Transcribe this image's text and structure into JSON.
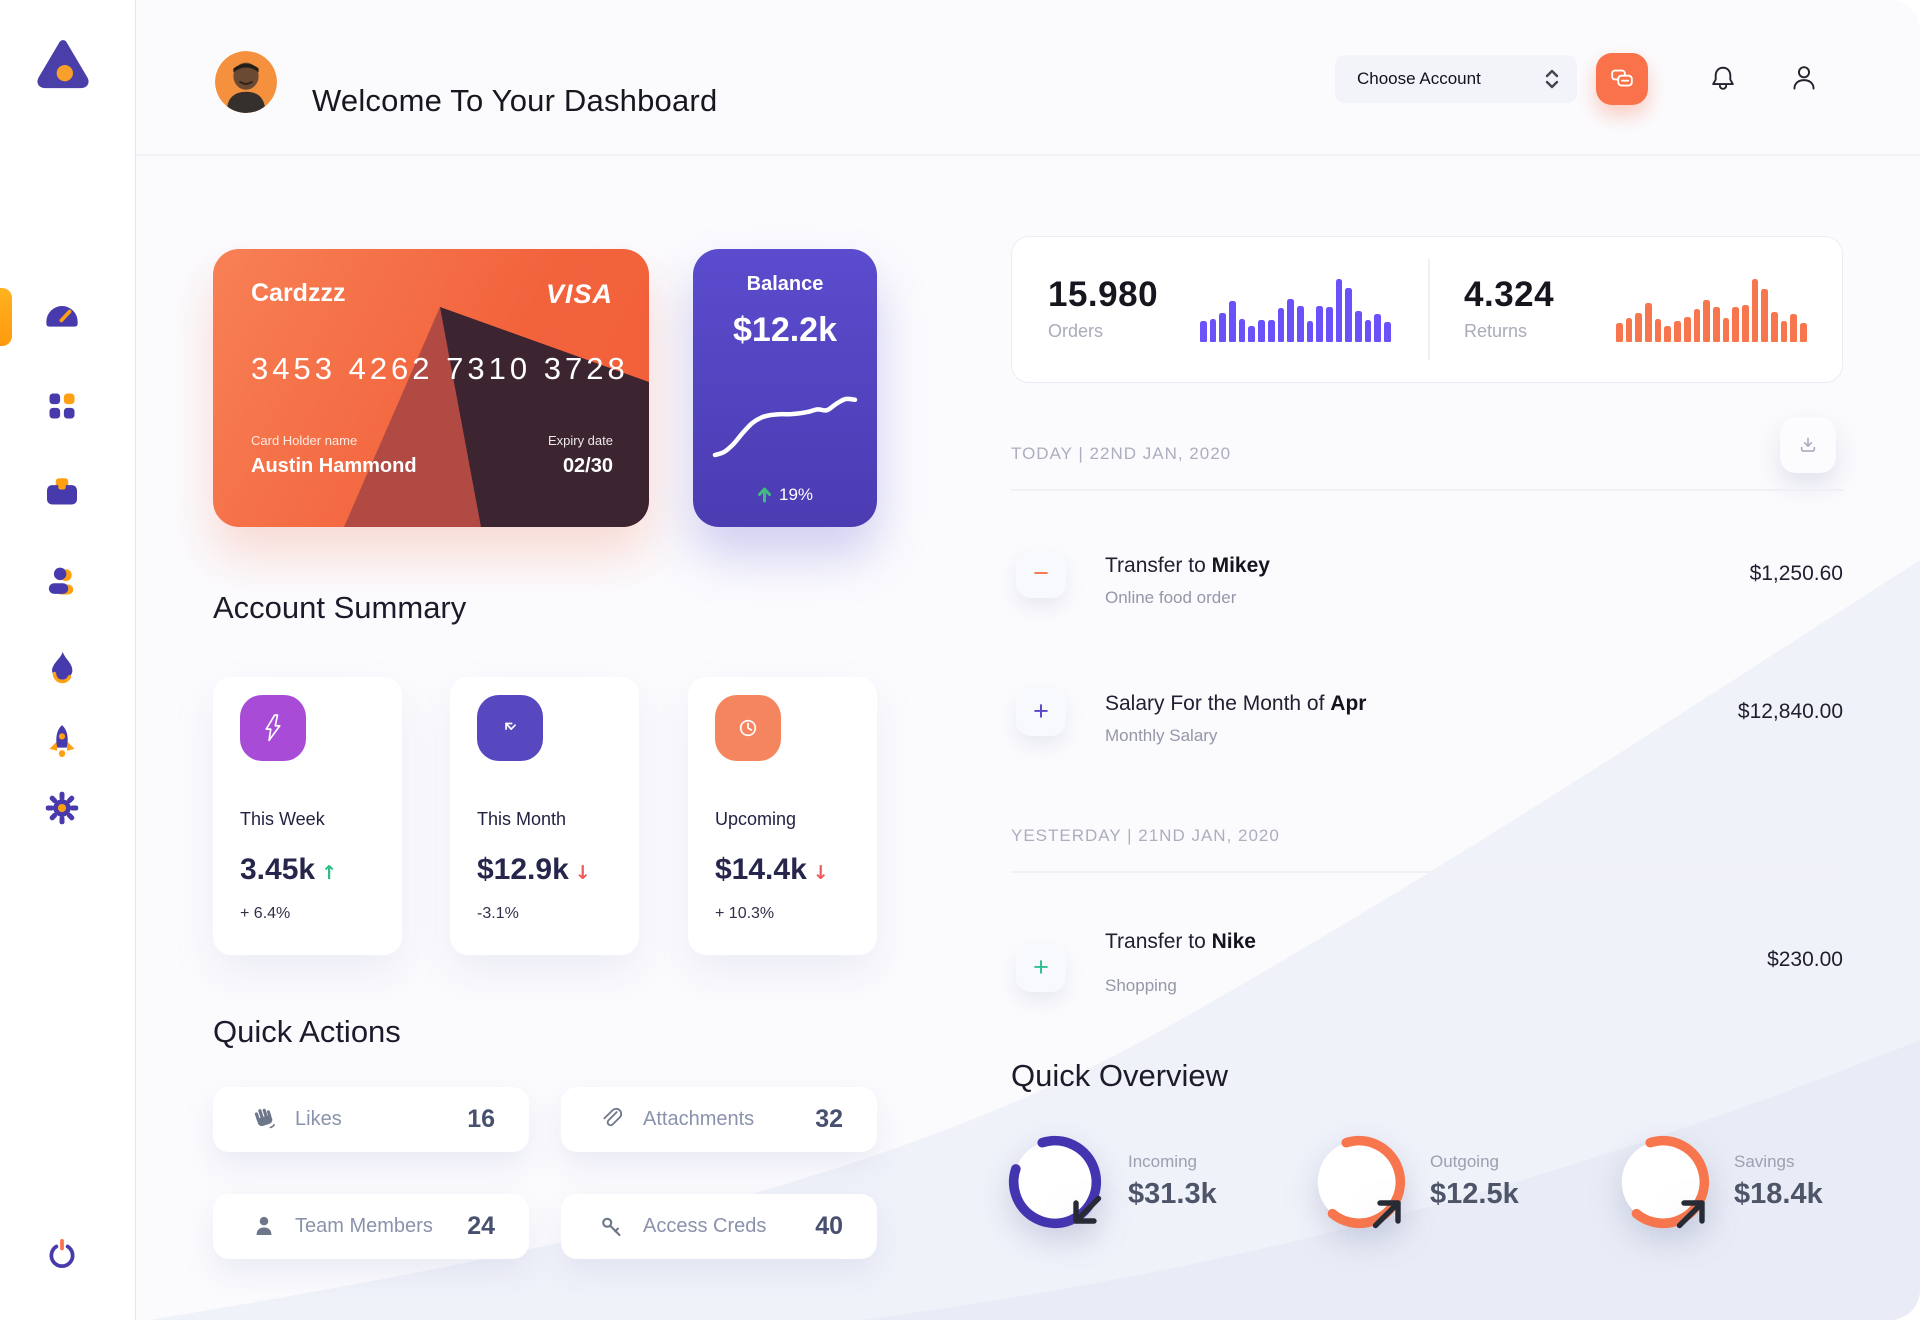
{
  "header": {
    "title": "Welcome To Your Dashboard",
    "account_select_label": "Choose Account"
  },
  "sidebar": {
    "items": [
      {
        "name": "dashboard",
        "icon": "speedometer-icon",
        "active": true
      },
      {
        "name": "apps",
        "icon": "grid-icon",
        "active": false
      },
      {
        "name": "work",
        "icon": "briefcase-icon",
        "active": false
      },
      {
        "name": "contacts",
        "icon": "user-icon",
        "active": false
      },
      {
        "name": "trending",
        "icon": "flame-icon",
        "active": false
      },
      {
        "name": "launch",
        "icon": "rocket-icon",
        "active": false
      },
      {
        "name": "settings",
        "icon": "gear-icon",
        "active": false
      }
    ],
    "logout_icon": "power-icon"
  },
  "credit_card": {
    "name": "Cardzzz",
    "brand": "VISA",
    "number": "3453 4262 7310 3728",
    "holder_label": "Card Holder name",
    "holder_name": "Austin Hammond",
    "expiry_label": "Expiry date",
    "expiry": "02/30"
  },
  "balance_card": {
    "label": "Balance",
    "value": "$12.2k",
    "change": "19%",
    "trend_color": "#3DBE7E"
  },
  "stats": [
    {
      "value": "15.980",
      "label": "Orders"
    },
    {
      "value": "4.324",
      "label": "Returns"
    }
  ],
  "account_summary": {
    "heading": "Account Summary",
    "cards": [
      {
        "label": "This Week",
        "value": "3.45k",
        "arrow": "↑",
        "arrow_color": "#2FBF84",
        "delta": "+ 6.4%",
        "icon": "lightning-icon",
        "icon_bg": "#A84BD6"
      },
      {
        "label": "This Month",
        "value": "$12.9k",
        "arrow": "↓",
        "arrow_color": "#F05A5A",
        "delta": "-3.1%",
        "icon": "arrow-up-left-icon",
        "icon_bg": "#5748C0"
      },
      {
        "label": "Upcoming",
        "value": "$14.4k",
        "arrow": "↓",
        "arrow_color": "#F05A5A",
        "delta": "+ 10.3%",
        "icon": "clock-icon",
        "icon_bg": "#F5855F"
      }
    ]
  },
  "quick_actions": {
    "heading": "Quick Actions",
    "items": [
      {
        "label": "Likes",
        "value": "16",
        "icon": "hand-icon"
      },
      {
        "label": "Attachments",
        "value": "32",
        "icon": "paperclip-icon"
      },
      {
        "label": "Team Members",
        "value": "24",
        "icon": "member-icon"
      },
      {
        "label": "Access Creds",
        "value": "40",
        "icon": "key-icon"
      }
    ]
  },
  "transactions": {
    "groups": [
      {
        "date": "TODAY | 22ND JAN, 2020",
        "rows": [
          {
            "title_prefix": "Transfer to ",
            "title_bold": "Mikey",
            "subtitle": "Online food order",
            "amount": "$1,250.60",
            "sign_glyph": "−",
            "sign_color": "#F8764D"
          },
          {
            "title_prefix": "Salary For the Month of ",
            "title_bold": "Apr",
            "subtitle": "Monthly Salary",
            "amount": "$12,840.00",
            "sign_glyph": "+",
            "sign_color": "#5546C8"
          }
        ]
      },
      {
        "date": "YESTERDAY | 21ND JAN, 2020",
        "rows": [
          {
            "title_prefix": "Transfer to ",
            "title_bold": "Nike",
            "subtitle": "Shopping",
            "amount": "$230.00",
            "sign_glyph": "+",
            "sign_color": "#2FBF8F"
          }
        ]
      }
    ]
  },
  "quick_overview": {
    "heading": "Quick Overview",
    "items": [
      {
        "label": "Incoming",
        "value": "$31.3k",
        "ring_color": "#4334B0",
        "ring_percent": 85,
        "arrow": "down-left"
      },
      {
        "label": "Outgoing",
        "value": "$12.5k",
        "ring_color": "#F8764D",
        "ring_percent": 66,
        "arrow": "up-right"
      },
      {
        "label": "Savings",
        "value": "$18.4k",
        "ring_color": "#F8764D",
        "ring_percent": 66,
        "arrow": "up-right"
      }
    ]
  },
  "chart_data": [
    {
      "type": "bar",
      "name": "orders-mini-bars",
      "values": [
        34,
        37,
        46,
        65,
        37,
        25,
        35,
        35,
        54,
        69,
        57,
        34,
        57,
        56,
        100,
        86,
        50,
        35,
        44,
        32
      ],
      "color": "#6A52FA"
    },
    {
      "type": "bar",
      "name": "returns-mini-bars",
      "values": [
        30,
        38,
        46,
        62,
        36,
        25,
        34,
        40,
        52,
        66,
        55,
        38,
        56,
        58,
        100,
        84,
        48,
        34,
        44,
        30
      ],
      "color": "#F8764D"
    },
    {
      "type": "line",
      "name": "balance-sparkline",
      "values": [
        10,
        14,
        24,
        38,
        50,
        57,
        60,
        61,
        61,
        62,
        64,
        67,
        66,
        74,
        80,
        79
      ],
      "color": "#FFFFFF"
    }
  ]
}
